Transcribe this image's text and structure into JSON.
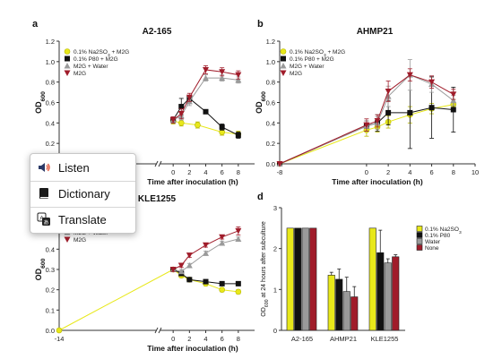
{
  "popup_menu": {
    "items": [
      {
        "label": "Listen",
        "icon": "speaker-icon"
      },
      {
        "label": "Dictionary",
        "icon": "book-icon"
      },
      {
        "label": "Translate",
        "icon": "translate-icon"
      }
    ]
  },
  "colors": {
    "na2so3": "#e8e81a",
    "p80": "#111111",
    "water": "#9a9a9a",
    "m2g": "#a01c2a"
  },
  "chart_data": [
    {
      "panel": "a",
      "type": "line",
      "title": "A2-165",
      "xlabel": "Time after inoculation (h)",
      "ylabel": "OD600",
      "xlim": [
        -14,
        10
      ],
      "ylim": [
        0.0,
        1.2
      ],
      "xticks": [
        "0",
        "2",
        "4",
        "6",
        "8"
      ],
      "yticks": [
        "0.0",
        "0.2",
        "0.4",
        "0.6",
        "0.8",
        "1.0",
        "1.2"
      ],
      "legend": [
        "0.1% Na2SO3 + M2G",
        "0.1% P80 + M2G",
        "M2G + Water",
        "M2G"
      ],
      "series": [
        {
          "name": "0.1% Na2SO3 + M2G",
          "color": "#e8e81a",
          "marker": "circle",
          "x": [
            0,
            1,
            3,
            6,
            8
          ],
          "y": [
            0.42,
            0.4,
            0.38,
            0.31,
            0.29
          ],
          "err": [
            0.03,
            0.03,
            0.03,
            0.03,
            0.03
          ]
        },
        {
          "name": "0.1% P80 + M2G",
          "color": "#111111",
          "marker": "square",
          "x": [
            0,
            1,
            2,
            4,
            6,
            8
          ],
          "y": [
            0.43,
            0.56,
            0.64,
            0.51,
            0.36,
            0.28
          ],
          "err": [
            0.03,
            0.08,
            0.03,
            0.02,
            0.03,
            0.03
          ]
        },
        {
          "name": "M2G + Water",
          "color": "#9a9a9a",
          "marker": "triangle",
          "x": [
            0,
            1,
            2,
            4,
            6,
            8
          ],
          "y": [
            0.43,
            0.47,
            0.61,
            0.84,
            0.84,
            0.82
          ],
          "err": [
            0.03,
            0.04,
            0.04,
            0.03,
            0.03,
            0.03
          ]
        },
        {
          "name": "M2G",
          "color": "#a01c2a",
          "marker": "triangle-down",
          "x": [
            0,
            1,
            2,
            4,
            6,
            8
          ],
          "y": [
            0.43,
            0.49,
            0.65,
            0.92,
            0.9,
            0.87
          ],
          "err": [
            0.03,
            0.05,
            0.04,
            0.04,
            0.04,
            0.04
          ]
        }
      ]
    },
    {
      "panel": "b",
      "type": "line",
      "title": "AHMP21",
      "xlabel": "Time after inoculation (h)",
      "ylabel": "OD600",
      "xlim": [
        -8,
        10
      ],
      "ylim": [
        0.0,
        1.2
      ],
      "xticks": [
        "-8",
        "0",
        "2",
        "4",
        "6",
        "8",
        "10"
      ],
      "yticks": [
        "0.0",
        "0.2",
        "0.4",
        "0.6",
        "0.8",
        "1.0",
        "1.2"
      ],
      "legend": [
        "0.1% Na2SO3 + M2G",
        "0.1% P80 + M2G",
        "M2G + Water",
        "M2G"
      ],
      "series": [
        {
          "name": "0.1% Na2SO3 + M2G",
          "color": "#e8e81a",
          "marker": "circle",
          "x": [
            -8,
            0,
            1,
            2,
            4,
            6,
            8
          ],
          "y": [
            0.0,
            0.33,
            0.36,
            0.41,
            0.48,
            0.54,
            0.58
          ],
          "err": [
            0.0,
            0.06,
            0.05,
            0.06,
            0.08,
            0.05,
            0.05
          ]
        },
        {
          "name": "0.1% P80 + M2G",
          "color": "#111111",
          "marker": "square",
          "x": [
            -8,
            0,
            1,
            2,
            4,
            6,
            8
          ],
          "y": [
            0.0,
            0.37,
            0.4,
            0.5,
            0.5,
            0.55,
            0.53
          ],
          "err": [
            0.0,
            0.05,
            0.08,
            0.12,
            0.35,
            0.3,
            0.22
          ]
        },
        {
          "name": "M2G + Water",
          "color": "#9a9a9a",
          "marker": "triangle",
          "x": [
            -8,
            0,
            1,
            2,
            4,
            6,
            8
          ],
          "y": [
            0.0,
            0.37,
            0.4,
            0.66,
            0.87,
            0.78,
            0.62
          ],
          "err": [
            0.0,
            0.05,
            0.06,
            0.1,
            0.15,
            0.08,
            0.05
          ]
        },
        {
          "name": "M2G",
          "color": "#a01c2a",
          "marker": "triangle-down",
          "x": [
            -8,
            0,
            1,
            2,
            4,
            6,
            8
          ],
          "y": [
            0.0,
            0.38,
            0.42,
            0.71,
            0.87,
            0.8,
            0.68
          ],
          "err": [
            0.0,
            0.06,
            0.06,
            0.1,
            0.06,
            0.06,
            0.05
          ]
        }
      ]
    },
    {
      "panel": "c",
      "type": "line",
      "title": "KLE1255",
      "xlabel": "Time after inoculation (h)",
      "ylabel": "OD600",
      "xlim": [
        -14,
        10
      ],
      "ylim": [
        0.0,
        0.6
      ],
      "xticks": [
        "-14",
        "0",
        "2",
        "4",
        "6",
        "8"
      ],
      "yticks": [
        "0.0",
        "0.1",
        "0.2",
        "0.3",
        "0.4",
        "0.5",
        "0.6"
      ],
      "legend": [
        "M2G + Water",
        "M2G"
      ],
      "series": [
        {
          "name": "0.1% Na2SO3 + M2G",
          "color": "#e8e81a",
          "marker": "circle",
          "x": [
            -14,
            0,
            1,
            2,
            4,
            6,
            8
          ],
          "y": [
            0.0,
            0.3,
            0.27,
            0.25,
            0.23,
            0.2,
            0.19
          ],
          "err": [
            0.0,
            0.01,
            0.01,
            0.01,
            0.01,
            0.01,
            0.01
          ]
        },
        {
          "name": "0.1% P80 + M2G",
          "color": "#111111",
          "marker": "square",
          "x": [
            0,
            1,
            2,
            4,
            6,
            8
          ],
          "y": [
            0.3,
            0.28,
            0.25,
            0.24,
            0.23,
            0.23
          ],
          "err": [
            0.01,
            0.01,
            0.01,
            0.01,
            0.01,
            0.01
          ]
        },
        {
          "name": "M2G + Water",
          "color": "#9a9a9a",
          "marker": "triangle",
          "x": [
            0,
            1,
            2,
            4,
            6,
            8
          ],
          "y": [
            0.3,
            0.29,
            0.32,
            0.38,
            0.43,
            0.45
          ],
          "err": [
            0.01,
            0.01,
            0.01,
            0.01,
            0.01,
            0.01
          ]
        },
        {
          "name": "M2G",
          "color": "#a01c2a",
          "marker": "triangle-down",
          "x": [
            0,
            1,
            2,
            4,
            6,
            8
          ],
          "y": [
            0.3,
            0.32,
            0.37,
            0.42,
            0.46,
            0.49
          ],
          "err": [
            0.01,
            0.01,
            0.01,
            0.01,
            0.01,
            0.02
          ]
        }
      ]
    },
    {
      "panel": "d",
      "type": "bar",
      "ylabel": "OD600 at 24 hours after subculture",
      "ylim": [
        0,
        3
      ],
      "categories": [
        "A2-165",
        "AHMP21",
        "KLE1255"
      ],
      "legend": [
        "0.1% Na2SO3",
        "0.1% P80",
        "Water",
        "None"
      ],
      "series": [
        {
          "name": "0.1% Na2SO3",
          "color": "#e8e81a",
          "values": [
            2.5,
            1.35,
            2.5
          ],
          "err": [
            0.0,
            0.07,
            0.0
          ]
        },
        {
          "name": "0.1% P80",
          "color": "#111111",
          "values": [
            2.5,
            1.25,
            1.9
          ],
          "err": [
            0.0,
            0.25,
            0.55
          ]
        },
        {
          "name": "Water",
          "color": "#9a9a9a",
          "values": [
            2.5,
            0.95,
            1.65
          ],
          "err": [
            0.0,
            0.35,
            0.1
          ]
        },
        {
          "name": "None",
          "color": "#a01c2a",
          "values": [
            2.5,
            0.82,
            1.8
          ],
          "err": [
            0.0,
            0.25,
            0.05
          ]
        }
      ]
    }
  ]
}
